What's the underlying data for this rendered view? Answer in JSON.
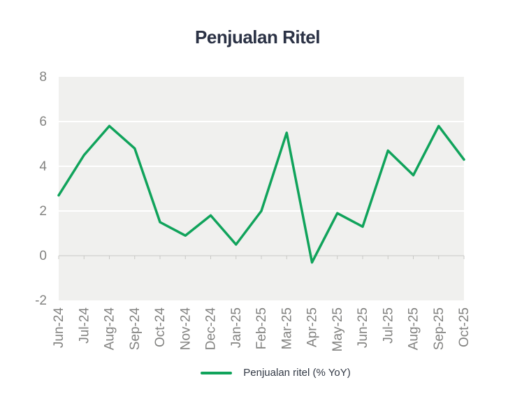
{
  "title": "Penjualan Ritel",
  "legend": {
    "label": "Penjualan ritel (% YoY)"
  },
  "colors": {
    "line": "#10a35b",
    "plot_background": "#f0f0ee",
    "gridline": "#ffffff",
    "axis_line": "#d6d6d3",
    "axis_tick": "#c8c8c5",
    "axis_text": "#828280",
    "title_text": "#2b3245",
    "legend_text": "#333a46"
  },
  "chart_data": {
    "type": "line",
    "title": "Penjualan Ritel",
    "categories": [
      "Jun-24",
      "Jul-24",
      "Aug-24",
      "Sep-24",
      "Oct-24",
      "Nov-24",
      "Dec-24",
      "Jan-25",
      "Feb-25",
      "Mar-25",
      "Apr-25",
      "May-25",
      "Jun-25",
      "Jul-25",
      "Aug-25",
      "Sep-25",
      "Oct-25"
    ],
    "series": [
      {
        "name": "Penjualan ritel (% YoY)",
        "values": [
          2.7,
          4.5,
          5.8,
          4.8,
          1.5,
          0.9,
          1.8,
          0.5,
          2.0,
          5.5,
          -0.3,
          1.9,
          1.3,
          4.7,
          3.6,
          5.8,
          4.3
        ]
      }
    ],
    "xlabel": "",
    "ylabel": "",
    "ylim": [
      -2,
      8
    ],
    "yticks": [
      8,
      6,
      4,
      2,
      0,
      -2
    ],
    "gridlines_at": [
      2,
      4,
      6
    ],
    "grid": true,
    "legend_position": "bottom",
    "x_label_rotation": -90
  }
}
